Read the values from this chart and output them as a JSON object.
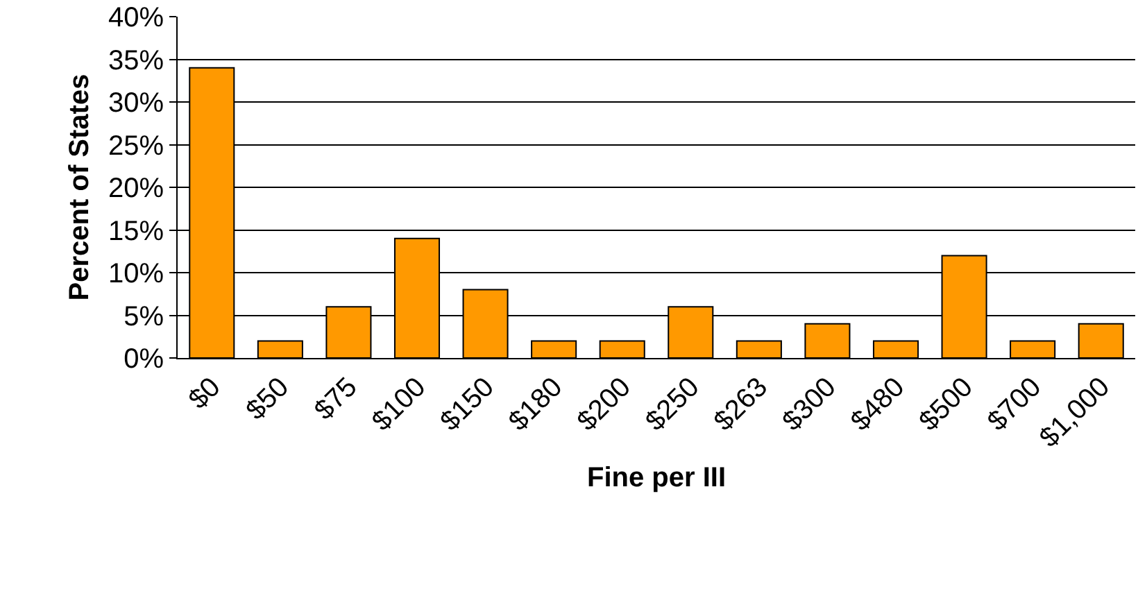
{
  "chart_data": {
    "type": "bar",
    "xlabel": "Fine per III",
    "ylabel": "Percent of States",
    "categories": [
      "$0",
      "$50",
      "$75",
      "$100",
      "$150",
      "$180",
      "$200",
      "$250",
      "$263",
      "$300",
      "$480",
      "$500",
      "$700",
      "$1,000"
    ],
    "values": [
      34,
      2,
      6,
      14,
      8,
      2,
      2,
      6,
      2,
      4,
      2,
      12,
      2,
      4
    ],
    "color": "#ff9900",
    "ylim": [
      0,
      40
    ],
    "yticks": [
      {
        "value": 0,
        "label": "0%"
      },
      {
        "value": 5,
        "label": "5%"
      },
      {
        "value": 10,
        "label": "10%"
      },
      {
        "value": 15,
        "label": "15%"
      },
      {
        "value": 20,
        "label": "20%"
      },
      {
        "value": 25,
        "label": "25%"
      },
      {
        "value": 30,
        "label": "30%"
      },
      {
        "value": 35,
        "label": "35%"
      },
      {
        "value": 40,
        "label": "40%"
      }
    ],
    "grid": "y"
  }
}
